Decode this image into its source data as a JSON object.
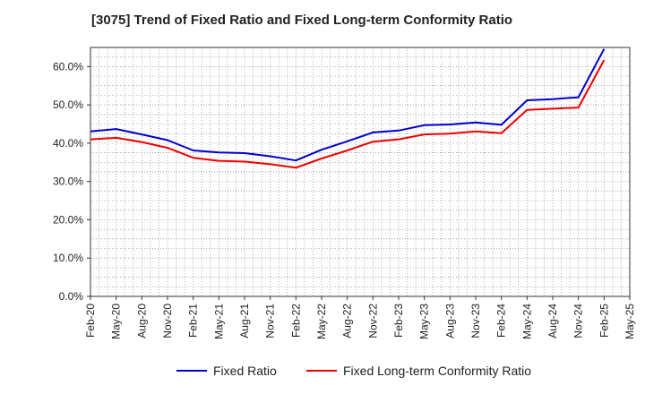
{
  "chart_data": {
    "type": "line",
    "title": "[3075]  Trend of Fixed Ratio and Fixed Long-term Conformity Ratio",
    "xlabel": "",
    "ylabel": "",
    "categories": [
      "Feb-20",
      "May-20",
      "Aug-20",
      "Nov-20",
      "Feb-21",
      "May-21",
      "Aug-21",
      "Nov-21",
      "Feb-22",
      "May-22",
      "Aug-22",
      "Nov-22",
      "Feb-23",
      "May-23",
      "Aug-23",
      "Nov-23",
      "Feb-24",
      "May-24",
      "Aug-24",
      "Nov-24",
      "Feb-25",
      "May-25"
    ],
    "ylim": [
      0,
      65
    ],
    "yticks": [
      0,
      10,
      20,
      30,
      40,
      50,
      60
    ],
    "ytick_labels": [
      "0.0%",
      "10.0%",
      "20.0%",
      "30.0%",
      "40.0%",
      "50.0%",
      "60.0%"
    ],
    "grid": true,
    "legend_position": "bottom",
    "series": [
      {
        "name": "Fixed Ratio",
        "color": "#0000cc",
        "values": [
          43.1,
          43.7,
          42.3,
          40.8,
          38.1,
          37.6,
          37.4,
          36.6,
          35.5,
          38.3,
          40.5,
          42.8,
          43.3,
          44.7,
          44.9,
          45.4,
          44.8,
          51.2,
          51.5,
          52.0,
          64.6,
          null
        ]
      },
      {
        "name": "Fixed Long-term Conformity Ratio",
        "color": "#ee0000",
        "values": [
          41.0,
          41.4,
          40.3,
          38.8,
          36.2,
          35.4,
          35.2,
          34.5,
          33.6,
          36.0,
          38.1,
          40.4,
          41.0,
          42.3,
          42.5,
          43.1,
          42.6,
          48.7,
          49.0,
          49.3,
          61.7,
          null
        ]
      }
    ]
  }
}
